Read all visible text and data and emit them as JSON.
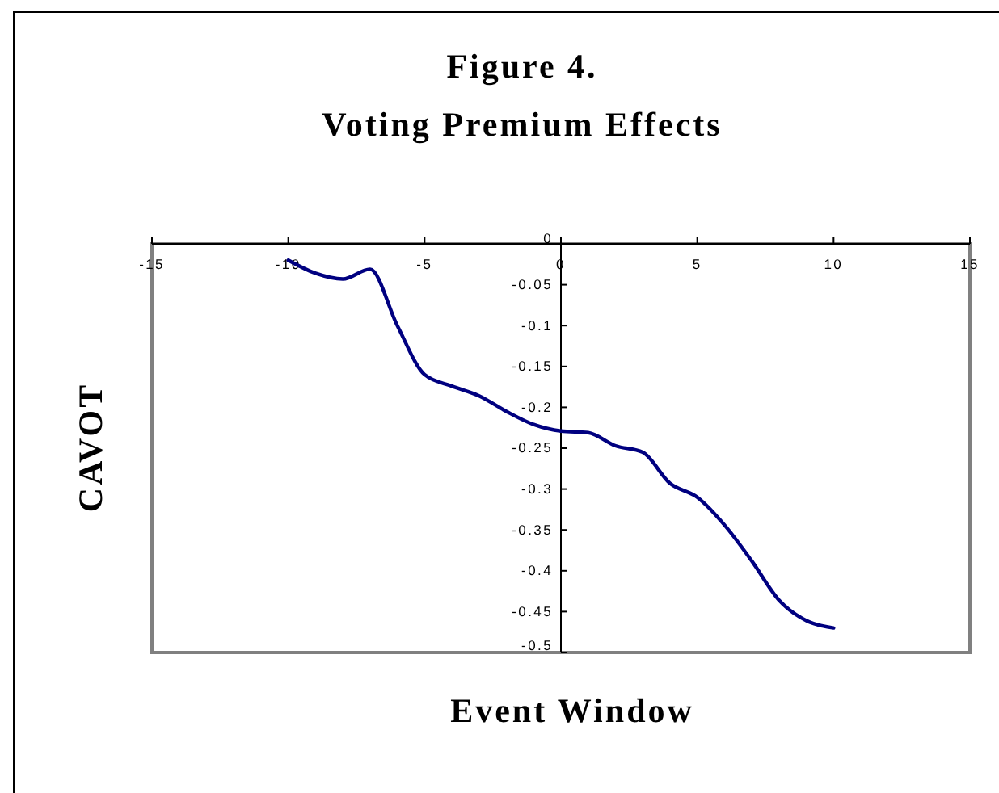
{
  "chart_data": {
    "type": "line",
    "title": "Figure 4.",
    "subtitle": "Voting Premium Effects",
    "xlabel": "Event Window",
    "ylabel": "CAVOT",
    "x": [
      -10,
      -9,
      -8,
      -7,
      -6,
      -5,
      -4,
      -3,
      -2,
      -1,
      0,
      1,
      2,
      3,
      4,
      5,
      6,
      7,
      8,
      9,
      10
    ],
    "series": [
      {
        "color": "#000080",
        "values": [
          -0.02,
          -0.036,
          -0.043,
          -0.031,
          -0.1,
          -0.16,
          -0.174,
          -0.186,
          -0.205,
          -0.221,
          -0.229,
          -0.231,
          -0.247,
          -0.255,
          -0.293,
          -0.31,
          -0.344,
          -0.388,
          -0.436,
          -0.461,
          -0.47
        ]
      }
    ],
    "xlim": [
      -15,
      15
    ],
    "xticks": [
      -15,
      -10,
      -5,
      0,
      5,
      10,
      15
    ],
    "ylim": [
      -0.5,
      0
    ],
    "yticks": [
      0,
      -0.05,
      -0.1,
      -0.15,
      -0.2,
      -0.25,
      -0.3,
      -0.35,
      -0.4,
      -0.45,
      -0.5
    ],
    "grid": false,
    "marker": "none",
    "line_style": "solid"
  }
}
